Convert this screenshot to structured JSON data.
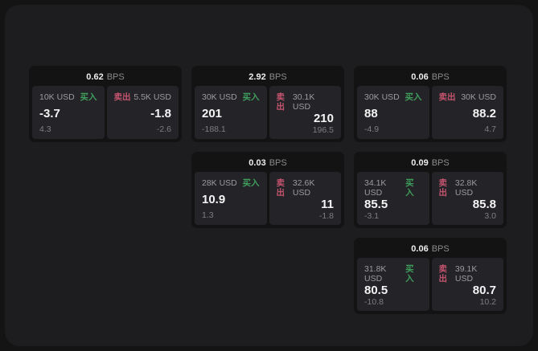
{
  "labels": {
    "buy": "买入",
    "sell": "卖出",
    "bps_suffix": "BPS"
  },
  "colors": {
    "outer_bg": "#141415",
    "panel_bg": "#1d1d1f",
    "card_bg": "#131314",
    "tile_bg": "#242428",
    "buy_green": "#3f9e5c",
    "sell_red": "#c4546e"
  },
  "cards": [
    {
      "row": 1,
      "col": 1,
      "bps_value": "0.62",
      "buy": {
        "amount": "10K USD",
        "value": "-3.7",
        "sub": "4.3"
      },
      "sell": {
        "amount": "5.5K USD",
        "value": "-1.8",
        "sub": "-2.6"
      }
    },
    {
      "row": 1,
      "col": 2,
      "bps_value": "2.92",
      "buy": {
        "amount": "30K USD",
        "value": "201",
        "sub": "-188.1"
      },
      "sell": {
        "amount": "30.1K USD",
        "value": "210",
        "sub": "196.5"
      }
    },
    {
      "row": 1,
      "col": 3,
      "bps_value": "0.06",
      "buy": {
        "amount": "30K USD",
        "value": "88",
        "sub": "-4.9"
      },
      "sell": {
        "amount": "30K USD",
        "value": "88.2",
        "sub": "4.7"
      }
    },
    {
      "row": 2,
      "col": 2,
      "bps_value": "0.03",
      "buy": {
        "amount": "28K USD",
        "value": "10.9",
        "sub": "1.3"
      },
      "sell": {
        "amount": "32.6K USD",
        "value": "11",
        "sub": "-1.8"
      }
    },
    {
      "row": 2,
      "col": 3,
      "bps_value": "0.09",
      "buy": {
        "amount": "34.1K USD",
        "value": "85.5",
        "sub": "-3.1"
      },
      "sell": {
        "amount": "32.8K USD",
        "value": "85.8",
        "sub": "3.0"
      }
    },
    {
      "row": 3,
      "col": 3,
      "bps_value": "0.06",
      "buy": {
        "amount": "31.8K USD",
        "value": "80.5",
        "sub": "-10.8"
      },
      "sell": {
        "amount": "39.1K USD",
        "value": "80.7",
        "sub": "10.2"
      }
    }
  ]
}
